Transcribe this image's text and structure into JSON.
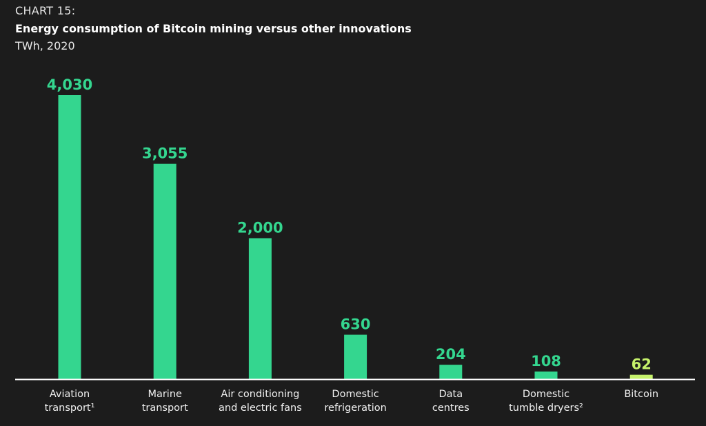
{
  "header": {
    "chart_number": "CHART 15:",
    "title": "Energy consumption of Bitcoin mining versus other innovations",
    "subtitle": "TWh, 2020"
  },
  "colors": {
    "background": "#1c1c1c",
    "bar": "#34d68f",
    "highlight_bar": "#c6f26b",
    "value_text": "#34d68f",
    "highlight_value_text": "#c6f26b",
    "axis": "#ffffff"
  },
  "chart_data": {
    "type": "bar",
    "title": "Energy consumption of Bitcoin mining versus other innovations",
    "ylabel": "",
    "xlabel": "",
    "categories": [
      [
        "Aviation",
        "transport¹"
      ],
      [
        "Marine",
        "transport"
      ],
      [
        "Air conditioning",
        "and electric fans"
      ],
      [
        "Domestic",
        "refrigeration"
      ],
      [
        "Data",
        "centres"
      ],
      [
        "Domestic",
        "tumble dryers²"
      ],
      [
        "Bitcoin"
      ]
    ],
    "values": [
      4030,
      3055,
      2000,
      630,
      204,
      108,
      62
    ],
    "value_labels": [
      "4,030",
      "3,055",
      "2,000",
      "630",
      "204",
      "108",
      "62"
    ],
    "highlight_index": 6,
    "grid": false,
    "ylim": [
      0,
      4030
    ]
  }
}
